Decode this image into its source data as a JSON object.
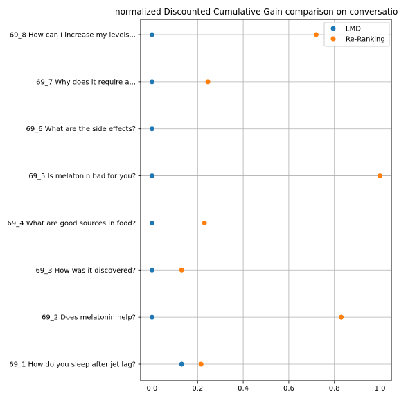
{
  "chart_data": {
    "type": "scatter",
    "title": "normalized Discounted Cumulative Gain comparison on conversatio",
    "xlabel": "",
    "ylabel": "",
    "xlim": [
      -0.05,
      1.05
    ],
    "xticks": [
      0.0,
      0.2,
      0.4,
      0.6,
      0.8,
      1.0
    ],
    "xtick_labels": [
      "0.0",
      "0.2",
      "0.4",
      "0.6",
      "0.8",
      "1.0"
    ],
    "grid": true,
    "legend_position": "top-right",
    "categories": [
      "69_1 How do you sleep after jet lag?",
      "69_2 Does melatonin help?",
      "69_3 How was it discovered?",
      "69_4 What are good sources in food?",
      "69_5 Is melatonin bad for you?",
      "69_6 What are the side effects?",
      "69_7 Why does it require a...",
      "69_8 How can I increase my levels..."
    ],
    "series": [
      {
        "name": "LMD",
        "color": "#1f77b4",
        "values": [
          0.13,
          0.0,
          0.0,
          0.0,
          0.0,
          0.0,
          0.0,
          0.0
        ]
      },
      {
        "name": "Re-Ranking",
        "color": "#ff7f0e",
        "values": [
          0.215,
          0.83,
          0.13,
          0.23,
          1.0,
          null,
          0.245,
          0.72
        ]
      }
    ]
  }
}
